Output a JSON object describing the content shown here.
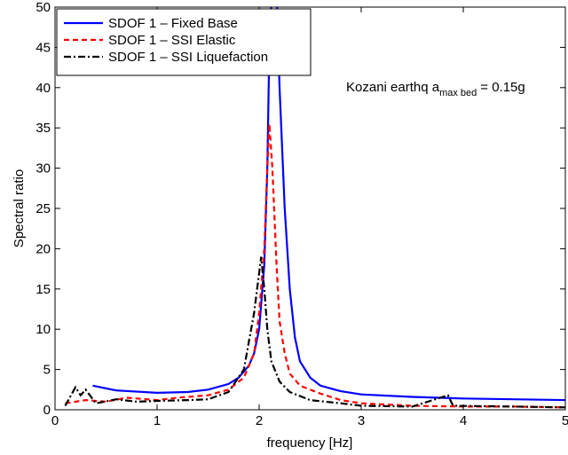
{
  "chart_data": {
    "type": "line",
    "x_label": "frequency [Hz]",
    "y_label": "Spectral ratio",
    "annotation": {
      "text": "Kozani earthq a",
      "subscript": "max bed",
      "suffix": "= 0.15g"
    },
    "xlim": [
      0,
      5
    ],
    "xticks": [
      0,
      1,
      2,
      3,
      4,
      5
    ],
    "ylim": [
      0,
      50
    ],
    "yticks": [
      0,
      5,
      10,
      15,
      20,
      25,
      30,
      35,
      40,
      45,
      50
    ],
    "legend": "upper left",
    "series": [
      {
        "name": "SDOF 1 – Fixed Base",
        "color": "#0000ff",
        "linestyle": "solid",
        "x": [
          0.37,
          0.6,
          1.0,
          1.3,
          1.5,
          1.7,
          1.8,
          1.9,
          1.95,
          2.0,
          2.05,
          2.08,
          2.1,
          2.15,
          2.2,
          2.25,
          2.3,
          2.35,
          2.4,
          2.45,
          2.5,
          2.6,
          2.8,
          3.0,
          3.5,
          4.0,
          4.5,
          5.0
        ],
        "values": [
          3.0,
          2.4,
          2.1,
          2.2,
          2.5,
          3.2,
          4.0,
          5.5,
          7,
          10,
          18,
          30,
          45,
          60,
          40,
          25,
          15,
          9,
          6,
          5,
          4,
          3,
          2.3,
          1.9,
          1.6,
          1.4,
          1.3,
          1.2
        ]
      },
      {
        "name": "SDOF 1 – SSI Elastic",
        "color": "#ff0000",
        "linestyle": "dashed",
        "x": [
          0.1,
          0.3,
          0.5,
          0.7,
          1.0,
          1.2,
          1.5,
          1.7,
          1.85,
          1.95,
          2.0,
          2.05,
          2.08,
          2.1,
          2.13,
          2.17,
          2.2,
          2.25,
          2.3,
          2.4,
          2.6,
          2.8,
          3.0,
          3.5,
          4.0,
          4.5,
          5.0
        ],
        "values": [
          0.8,
          1.2,
          1.0,
          1.5,
          1.2,
          1.5,
          1.8,
          2.5,
          4,
          7,
          12,
          20,
          30,
          35.5,
          30,
          18,
          11,
          7,
          4.5,
          3,
          2,
          1.2,
          0.8,
          0.5,
          0.4,
          0.4,
          0.3
        ]
      },
      {
        "name": "SDOF 1 – SSI Liquefaction",
        "color": "#000000",
        "linestyle": "dashdot",
        "x": [
          0.1,
          0.2,
          0.25,
          0.3,
          0.4,
          0.6,
          0.8,
          1.0,
          1.3,
          1.5,
          1.7,
          1.85,
          1.9,
          1.95,
          2.0,
          2.02,
          2.05,
          2.08,
          2.12,
          2.2,
          2.3,
          2.5,
          2.8,
          3.0,
          3.5,
          3.85,
          3.9,
          4.5,
          5.0
        ],
        "values": [
          0.5,
          2.8,
          1.8,
          2.5,
          0.8,
          1.3,
          1.0,
          1.1,
          1.2,
          1.3,
          2.2,
          5,
          8.5,
          12,
          17,
          19,
          15,
          10,
          6,
          3.5,
          2.2,
          1.2,
          0.8,
          0.5,
          0.4,
          1.8,
          0.5,
          0.4,
          0.3
        ]
      }
    ]
  }
}
